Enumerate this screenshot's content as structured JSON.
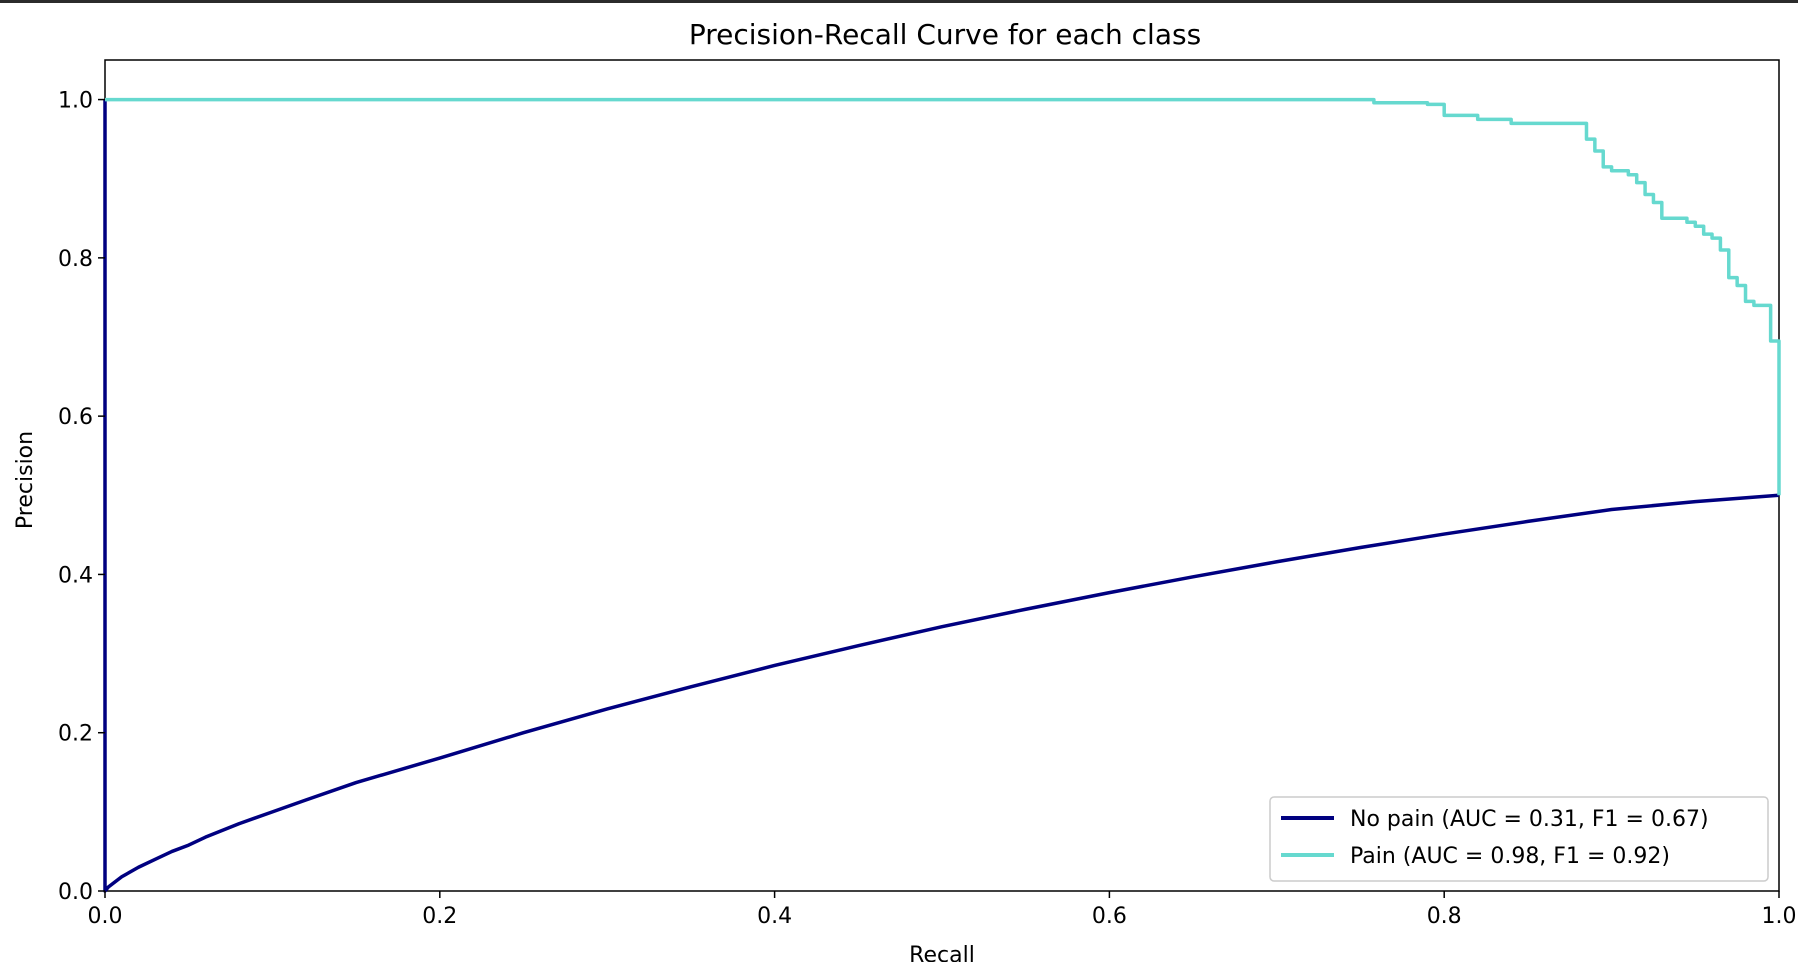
{
  "chart_data": {
    "type": "line",
    "title": "Precision-Recall Curve for each class",
    "xlabel": "Recall",
    "ylabel": "Precision",
    "xlim": [
      0.0,
      1.0
    ],
    "ylim": [
      0.0,
      1.05
    ],
    "xticks": [
      "0.0",
      "0.2",
      "0.4",
      "0.6",
      "0.8",
      "1.0"
    ],
    "yticks": [
      "0.0",
      "0.2",
      "0.4",
      "0.6",
      "0.8",
      "1.0"
    ],
    "grid": false,
    "legend_position": "lower right",
    "series": [
      {
        "name": "No pain (AUC = 0.31, F1 = 0.67)",
        "color": "#000080",
        "x": [
          0.0,
          0.0,
          0.002,
          0.01,
          0.02,
          0.03,
          0.04,
          0.05,
          0.06,
          0.08,
          0.1,
          0.12,
          0.15,
          0.2,
          0.25,
          0.3,
          0.35,
          0.4,
          0.45,
          0.5,
          0.55,
          0.6,
          0.65,
          0.7,
          0.75,
          0.8,
          0.85,
          0.9,
          0.95,
          1.0
        ],
        "y": [
          1.0,
          0.0,
          0.005,
          0.018,
          0.03,
          0.04,
          0.05,
          0.058,
          0.068,
          0.085,
          0.1,
          0.115,
          0.137,
          0.168,
          0.2,
          0.23,
          0.258,
          0.285,
          0.31,
          0.334,
          0.356,
          0.377,
          0.397,
          0.416,
          0.434,
          0.451,
          0.467,
          0.482,
          0.492,
          0.5
        ]
      },
      {
        "name": "Pain (AUC = 0.98, F1 = 0.92)",
        "color": "#66d9cf",
        "step": true,
        "x": [
          0.0,
          0.755,
          0.758,
          0.78,
          0.79,
          0.8,
          0.82,
          0.84,
          0.87,
          0.885,
          0.89,
          0.895,
          0.9,
          0.91,
          0.915,
          0.92,
          0.925,
          0.93,
          0.94,
          0.945,
          0.95,
          0.955,
          0.96,
          0.965,
          0.97,
          0.975,
          0.98,
          0.985,
          0.99,
          0.995,
          1.0,
          1.0
        ],
        "y": [
          1.0,
          1.0,
          0.996,
          0.996,
          0.994,
          0.98,
          0.975,
          0.97,
          0.97,
          0.95,
          0.935,
          0.915,
          0.91,
          0.905,
          0.895,
          0.88,
          0.87,
          0.85,
          0.85,
          0.845,
          0.84,
          0.83,
          0.825,
          0.81,
          0.775,
          0.765,
          0.745,
          0.74,
          0.74,
          0.695,
          0.69,
          0.5
        ]
      }
    ]
  }
}
